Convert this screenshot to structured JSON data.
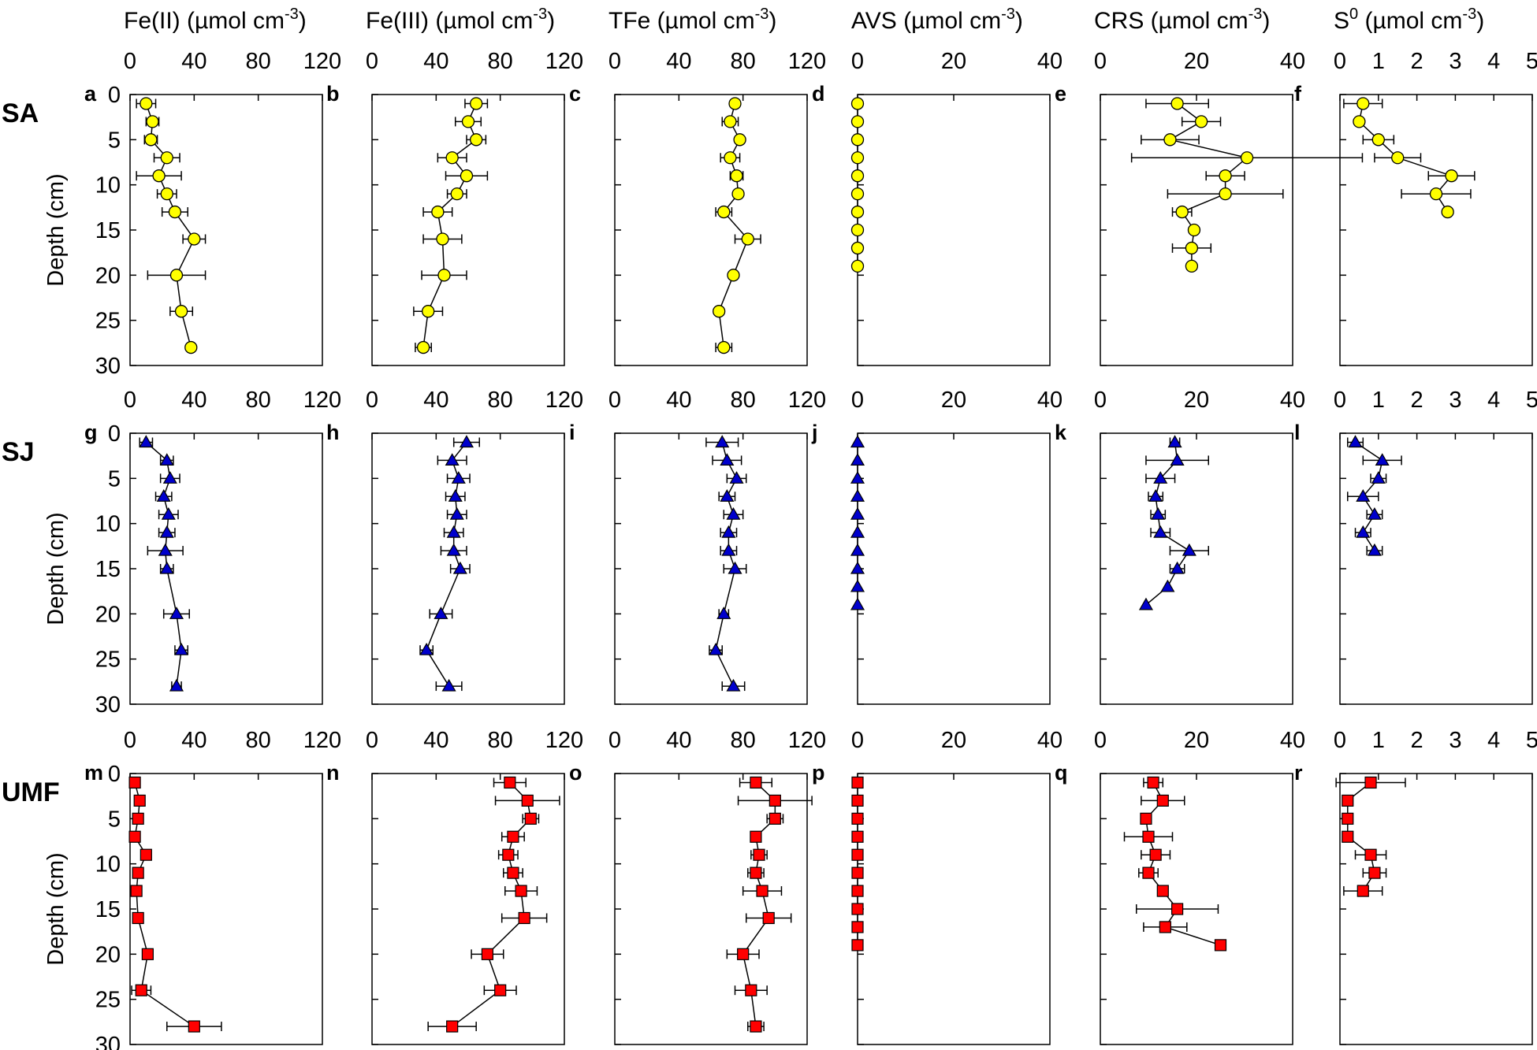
{
  "figure": {
    "columns": [
      {
        "id": "fe2",
        "title": "Fe(II) (µmol cm",
        "unit_sup": "-3",
        "unit_close": ")",
        "xlim": [
          0,
          120
        ],
        "xticks": [
          "0",
          "40",
          "80",
          "120"
        ]
      },
      {
        "id": "fe3",
        "title": "Fe(III) (µmol cm",
        "unit_sup": "-3",
        "unit_close": ")",
        "xlim": [
          0,
          120
        ],
        "xticks": [
          "0",
          "40",
          "80",
          "120"
        ]
      },
      {
        "id": "tfe",
        "title": "TFe (µmol cm",
        "unit_sup": "-3",
        "unit_close": ")",
        "xlim": [
          0,
          120
        ],
        "xticks": [
          "0",
          "40",
          "80",
          "120"
        ]
      },
      {
        "id": "avs",
        "title": "AVS (µmol cm",
        "unit_sup": "-3",
        "unit_close": ")",
        "xlim": [
          0,
          40
        ],
        "xticks": [
          "0",
          "20",
          "40"
        ]
      },
      {
        "id": "crs",
        "title": "CRS (µmol cm",
        "unit_sup": "-3",
        "unit_close": ")",
        "xlim": [
          0,
          40
        ],
        "xticks": [
          "0",
          "20",
          "40"
        ]
      },
      {
        "id": "s0",
        "title_main": "S",
        "title_sup": "0",
        "title": " (µmol cm",
        "unit_sup": "-3",
        "unit_close": ")",
        "xlim": [
          0,
          5
        ],
        "xticks": [
          "0",
          "1",
          "2",
          "3",
          "4",
          "5"
        ]
      }
    ],
    "rows": [
      {
        "id": "SA",
        "label": "SA",
        "marker": "circle",
        "color": "#FFFF00",
        "letters": [
          "a",
          "b",
          "c",
          "d",
          "e",
          "f"
        ]
      },
      {
        "id": "SJ",
        "label": "SJ",
        "marker": "triangle",
        "color": "#0000CC",
        "letters": [
          "g",
          "h",
          "i",
          "j",
          "k",
          "l"
        ]
      },
      {
        "id": "UMF",
        "label": "UMF",
        "marker": "square",
        "color": "#FF0000",
        "letters": [
          "m",
          "n",
          "o",
          "p",
          "q",
          "r"
        ]
      }
    ],
    "ylabel": "Depth (cm)",
    "yticks": [
      "0",
      "5",
      "10",
      "15",
      "20",
      "25",
      "30"
    ]
  },
  "chart_data": {
    "type": "scatter",
    "ylim": [
      30,
      0
    ],
    "ylabel": "Depth (cm)",
    "panels": {
      "SA": {
        "fe2": {
          "depth": [
            1,
            3,
            5,
            7,
            9,
            11,
            13,
            16,
            20,
            24,
            28
          ],
          "value": [
            10,
            14,
            13,
            23,
            18,
            23,
            28,
            40,
            29,
            32,
            38
          ],
          "err": [
            6,
            4,
            4,
            8,
            14,
            6,
            8,
            7,
            18,
            7,
            0
          ]
        },
        "fe3": {
          "depth": [
            1,
            3,
            5,
            7,
            9,
            11,
            13,
            16,
            20,
            24,
            28
          ],
          "value": [
            65,
            60,
            65,
            50,
            59,
            53,
            41,
            44,
            45,
            35,
            32
          ],
          "err": [
            7,
            8,
            6,
            9,
            13,
            6,
            9,
            12,
            14,
            9,
            5
          ]
        },
        "tfe": {
          "depth": [
            1,
            3,
            5,
            7,
            9,
            11,
            13,
            16,
            20,
            24,
            28
          ],
          "value": [
            75,
            72,
            78,
            72,
            76,
            77,
            68,
            83,
            74,
            65,
            68
          ],
          "err": [
            0,
            5,
            0,
            6,
            4,
            0,
            5,
            8,
            0,
            0,
            5
          ]
        },
        "avs": {
          "depth": [
            1,
            3,
            5,
            7,
            9,
            11,
            13,
            15,
            17,
            19
          ],
          "value": [
            0,
            0,
            0,
            0,
            0,
            0,
            0,
            0,
            0,
            0
          ],
          "err": [
            0,
            0,
            0,
            0,
            0,
            0,
            0,
            0,
            0,
            0
          ]
        },
        "crs": {
          "depth": [
            1,
            3,
            5,
            7,
            9,
            11,
            13,
            15,
            17,
            19
          ],
          "value": [
            16,
            21,
            14.5,
            30.5,
            26,
            26,
            17,
            19.5,
            19,
            19
          ],
          "err": [
            6.5,
            4,
            6,
            24,
            4,
            12,
            2,
            0,
            4,
            0
          ]
        },
        "s0": {
          "depth": [
            1,
            3,
            5,
            7,
            9,
            11,
            13
          ],
          "value": [
            0.6,
            0.5,
            1.0,
            1.5,
            2.9,
            2.5,
            2.8
          ],
          "err": [
            0.5,
            0,
            0.4,
            0.6,
            0.6,
            0.9,
            0
          ]
        }
      },
      "SJ": {
        "fe2": {
          "depth": [
            1,
            3,
            5,
            7,
            9,
            11,
            13,
            15,
            20,
            24,
            28
          ],
          "value": [
            10,
            23,
            25,
            21,
            24,
            23,
            22,
            23,
            29,
            32,
            29
          ],
          "err": [
            4,
            4,
            6,
            5,
            6,
            5,
            11,
            4,
            8,
            4,
            3
          ]
        },
        "fe3": {
          "depth": [
            1,
            3,
            5,
            7,
            9,
            11,
            13,
            15,
            20,
            24,
            28
          ],
          "value": [
            59,
            50,
            54,
            52,
            53,
            51,
            51,
            55,
            43,
            34,
            48
          ],
          "err": [
            8,
            9,
            7,
            6,
            6,
            6,
            8,
            6,
            7,
            4,
            8
          ]
        },
        "tfe": {
          "depth": [
            1,
            3,
            5,
            7,
            9,
            11,
            13,
            15,
            20,
            24,
            28
          ],
          "value": [
            67,
            70,
            76,
            70,
            74,
            71,
            71,
            75,
            68,
            63,
            74
          ],
          "err": [
            10,
            9,
            6,
            5,
            6,
            5,
            5,
            7,
            3,
            4,
            7
          ]
        },
        "avs": {
          "depth": [
            1,
            3,
            5,
            7,
            9,
            11,
            13,
            15,
            17,
            19
          ],
          "value": [
            0,
            0,
            0,
            0,
            0,
            0,
            0,
            0,
            0,
            0
          ],
          "err": [
            0,
            0,
            0,
            0,
            0,
            0,
            0,
            0,
            0,
            0
          ]
        },
        "crs": {
          "depth": [
            1,
            3,
            5,
            7,
            9,
            11,
            13,
            15,
            17,
            19
          ],
          "value": [
            15.5,
            16,
            12.5,
            11.5,
            12,
            12.5,
            18.5,
            16,
            14,
            9.5
          ],
          "err": [
            1,
            6.5,
            3,
            1.5,
            1.5,
            2,
            4,
            1.5,
            0,
            0
          ]
        },
        "s0": {
          "depth": [
            1,
            3,
            5,
            7,
            9,
            11,
            13
          ],
          "value": [
            0.4,
            1.1,
            1.0,
            0.6,
            0.9,
            0.6,
            0.9
          ],
          "err": [
            0.2,
            0.5,
            0.2,
            0.4,
            0.2,
            0.2,
            0.2
          ]
        }
      },
      "UMF": {
        "fe2": {
          "depth": [
            1,
            3,
            5,
            7,
            9,
            11,
            13,
            16,
            20,
            24,
            28
          ],
          "value": [
            3,
            6,
            5,
            3,
            10,
            5,
            4,
            5,
            11,
            7,
            40
          ],
          "err": [
            2,
            3,
            2,
            2,
            3,
            3,
            2,
            2,
            2,
            6,
            17
          ]
        },
        "fe3": {
          "depth": [
            1,
            3,
            5,
            7,
            9,
            11,
            13,
            16,
            20,
            24,
            28
          ],
          "value": [
            86,
            97,
            99,
            88,
            85,
            88,
            93,
            95,
            72,
            80,
            50
          ],
          "err": [
            10,
            20,
            5,
            7,
            6,
            6,
            10,
            14,
            10,
            10,
            15
          ]
        },
        "tfe": {
          "depth": [
            1,
            3,
            5,
            7,
            9,
            11,
            13,
            16,
            20,
            24,
            28
          ],
          "value": [
            88,
            100,
            100,
            88,
            90,
            88,
            92,
            96,
            80,
            85,
            88
          ],
          "err": [
            10,
            23,
            5,
            0,
            5,
            5,
            12,
            14,
            10,
            10,
            5
          ]
        },
        "avs": {
          "depth": [
            1,
            3,
            5,
            7,
            9,
            11,
            13,
            15,
            17,
            19
          ],
          "value": [
            0,
            0,
            0,
            0,
            0,
            0,
            0,
            0,
            0,
            0
          ],
          "err": [
            0,
            0,
            0,
            0,
            0,
            0,
            0,
            0,
            0,
            0
          ]
        },
        "crs": {
          "depth": [
            1,
            3,
            5,
            7,
            9,
            11,
            13,
            15,
            17,
            19
          ],
          "value": [
            11,
            13,
            9.5,
            10,
            11.5,
            10,
            13,
            16,
            13.5,
            25
          ],
          "err": [
            2,
            4.5,
            0,
            5,
            3,
            2,
            0,
            8.5,
            4.5,
            0
          ]
        },
        "s0": {
          "depth": [
            1,
            3,
            5,
            7,
            9,
            11,
            13
          ],
          "value": [
            0.8,
            0.2,
            0.2,
            0.2,
            0.8,
            0.9,
            0.6
          ],
          "err": [
            0.9,
            0,
            0,
            0,
            0.4,
            0.3,
            0.5
          ]
        }
      }
    }
  }
}
